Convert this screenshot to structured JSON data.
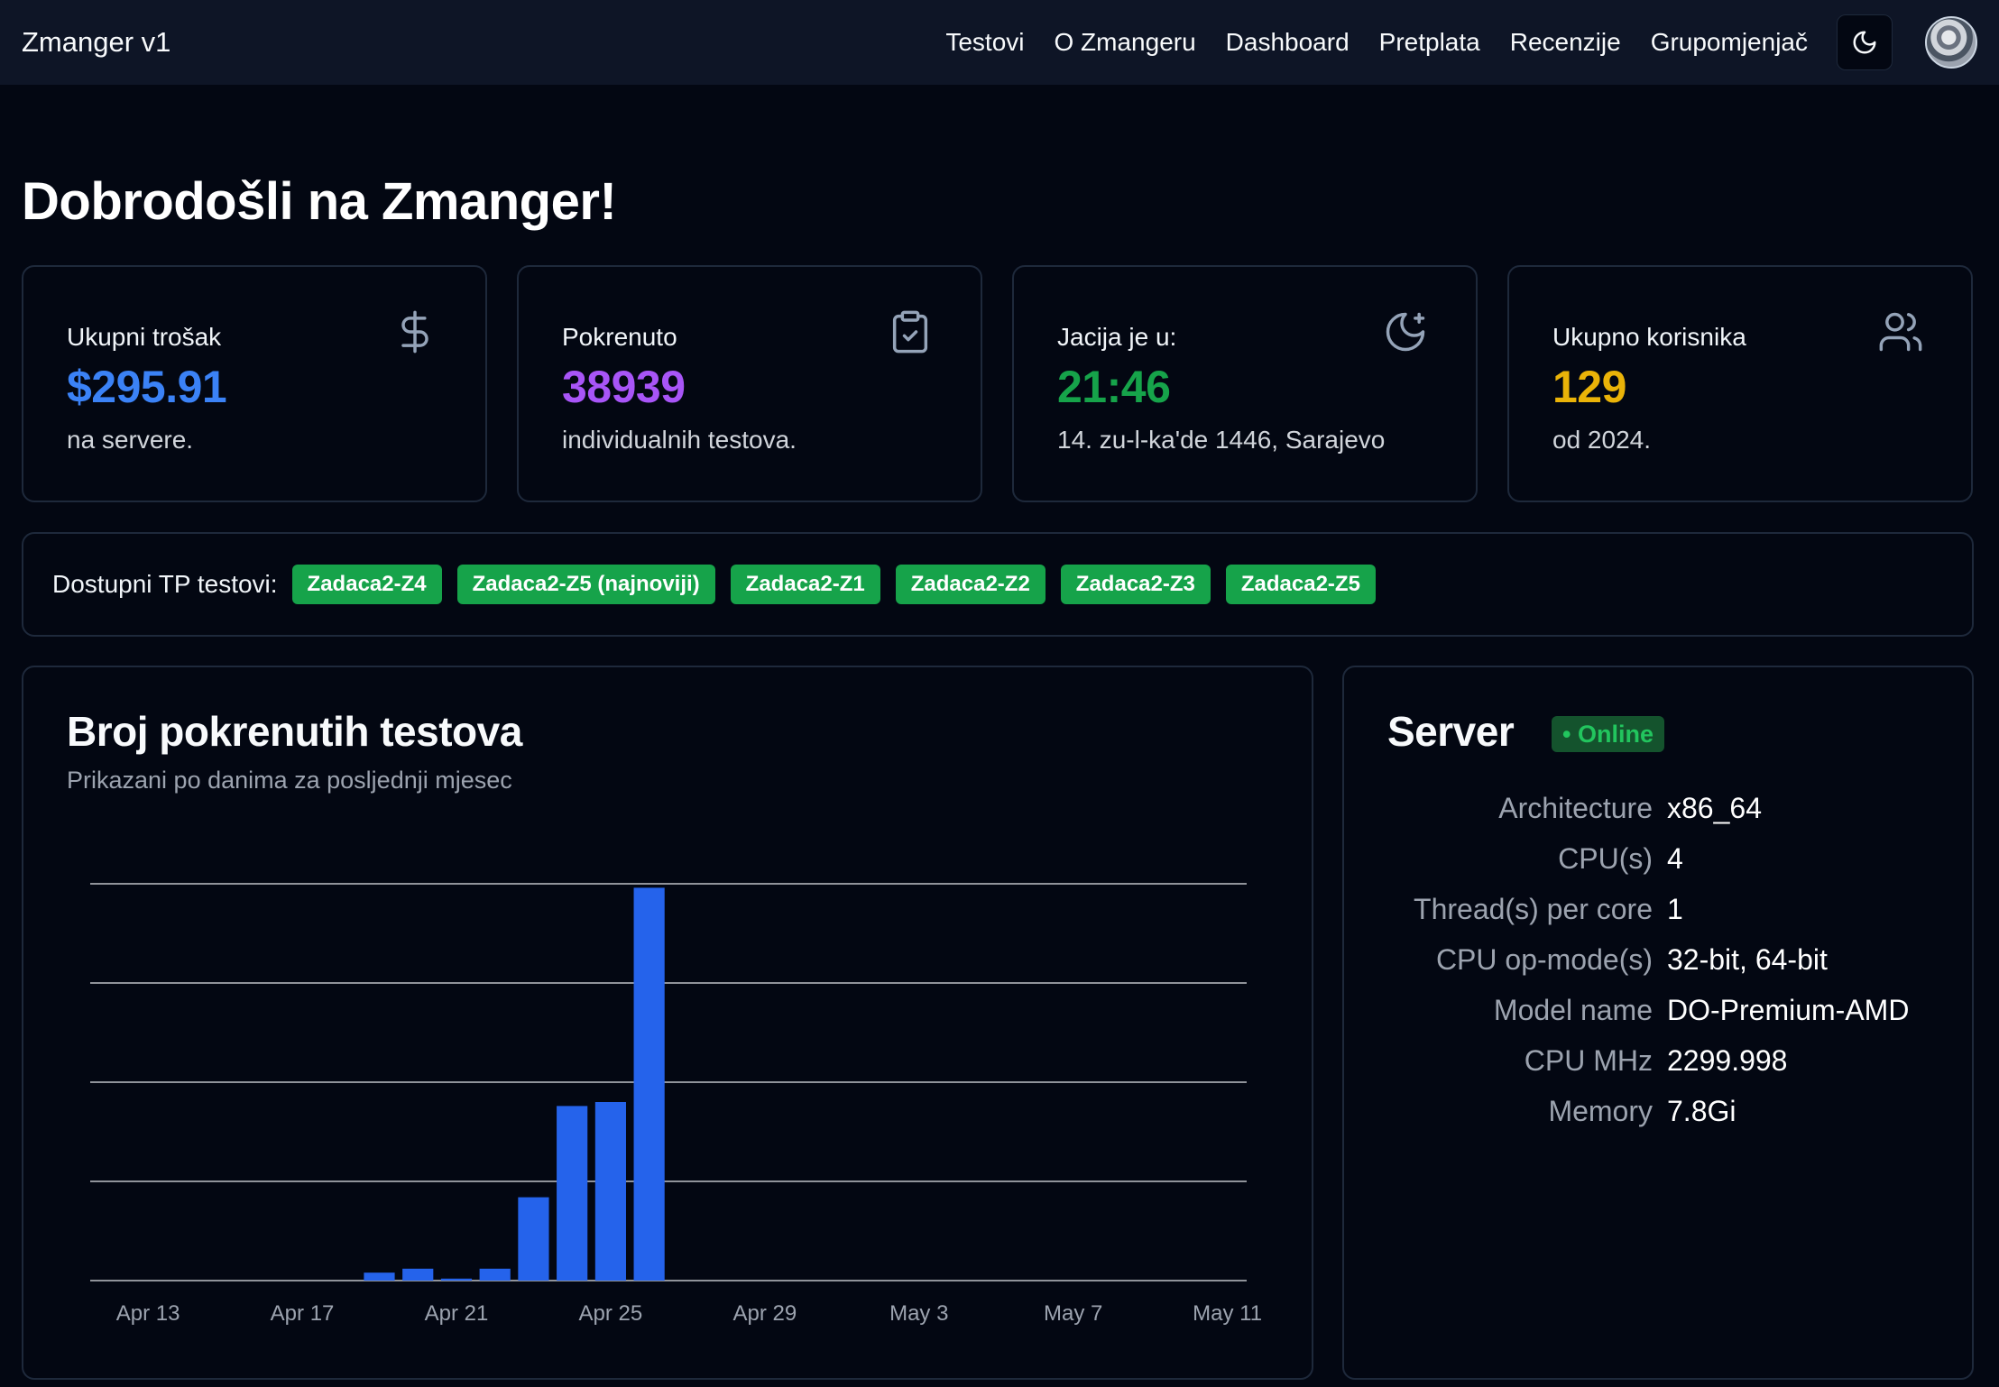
{
  "navbar": {
    "brand": "Zmanger v1",
    "links": [
      "Testovi",
      "O Zmangeru",
      "Dashboard",
      "Pretplata",
      "Recenzije",
      "Grupomjenjač"
    ],
    "theme_icon": "moon-icon",
    "avatar_icon": "user-avatar"
  },
  "page_title": "Dobrodošli na Zmanger!",
  "stats": [
    {
      "label": "Ukupni trošak",
      "value": "$295.91",
      "sub": "na servere.",
      "icon": "dollar-icon",
      "color": "#3b82f6"
    },
    {
      "label": "Pokrenuto",
      "value": "38939",
      "sub": "individualnih testova.",
      "icon": "clipboard-check-icon",
      "color": "#a855f7"
    },
    {
      "label": "Jacija je u:",
      "value": "21:46",
      "sub": "14. zu-l-ka'de 1446, Sarajevo",
      "icon": "moon-star-icon",
      "color": "#16a34a"
    },
    {
      "label": "Ukupno korisnika",
      "value": "129",
      "sub": "od 2024.",
      "icon": "users-icon",
      "color": "#eab308"
    }
  ],
  "tests": {
    "label": "Dostupni TP testovi:",
    "tags": [
      "Zadaca2-Z4",
      "Zadaca2-Z5 (najnoviji)",
      "Zadaca2-Z1",
      "Zadaca2-Z2",
      "Zadaca2-Z3",
      "Zadaca2-Z5"
    ],
    "tag_color": "#16a34a"
  },
  "chart": {
    "title": "Broj pokrenutih testova",
    "subtitle": "Prikazani po danima za posljednji mjesec"
  },
  "chart_data": {
    "type": "bar",
    "title": "Broj pokrenutih testova",
    "subtitle": "Prikazani po danima za posljednji mjesec",
    "x_start": "Apr 12",
    "x_end": "May 12",
    "tick_labels": [
      "Apr 13",
      "Apr 17",
      "Apr 21",
      "Apr 25",
      "Apr 29",
      "May 3",
      "May 7",
      "May 11"
    ],
    "categories": [
      "Apr 19",
      "Apr 20",
      "Apr 21",
      "Apr 22",
      "Apr 23",
      "Apr 24",
      "Apr 25",
      "Apr 26"
    ],
    "values": [
      0.02,
      0.03,
      0.005,
      0.03,
      0.21,
      0.44,
      0.45,
      0.99
    ],
    "value_scale": "fraction of y-axis maximum (no y tick labels shown)",
    "ylim": [
      0,
      1
    ],
    "gridlines": 5,
    "grid": true,
    "bar_color": "#2563eb",
    "xlabel": "",
    "ylabel": ""
  },
  "server": {
    "title": "Server",
    "status": "• Online",
    "specs": [
      {
        "key": "Architecture",
        "value": "x86_64"
      },
      {
        "key": "CPU(s)",
        "value": "4"
      },
      {
        "key": "Thread(s) per core",
        "value": "1"
      },
      {
        "key": "CPU op-mode(s)",
        "value": "32-bit, 64-bit"
      },
      {
        "key": "Model name",
        "value": "DO-Premium-AMD"
      },
      {
        "key": "CPU MHz",
        "value": "2299.998"
      },
      {
        "key": "Memory",
        "value": "7.8Gi"
      }
    ]
  }
}
